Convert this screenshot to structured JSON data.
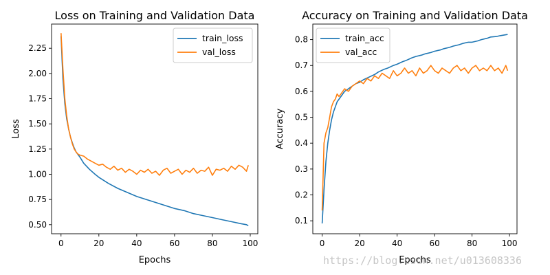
{
  "watermark": "https://blog.csdn.net/u013608336",
  "colors": {
    "train": "#1f77b4",
    "val": "#ff7f0e",
    "axis": "#000000",
    "legend_border": "#cccccc"
  },
  "chart_data": [
    {
      "type": "line",
      "title": "Loss on Training and Validation Data",
      "xlabel": "Epochs",
      "ylabel": "Loss",
      "xlim": [
        -5,
        104
      ],
      "ylim": [
        0.41,
        2.49
      ],
      "xticks": [
        0,
        20,
        40,
        60,
        80,
        100
      ],
      "yticks": [
        0.5,
        0.75,
        1.0,
        1.25,
        1.5,
        1.75,
        2.0,
        2.25
      ],
      "ytick_labels": [
        "0.50",
        "0.75",
        "1.00",
        "1.25",
        "1.50",
        "1.75",
        "2.00",
        "2.25"
      ],
      "legend_position": "top-right",
      "series": [
        {
          "name": "train_loss",
          "color": "#1f77b4",
          "x": [
            0,
            1,
            2,
            3,
            4,
            5,
            6,
            7,
            8,
            10,
            12,
            15,
            18,
            20,
            25,
            30,
            35,
            40,
            45,
            50,
            55,
            60,
            65,
            70,
            75,
            80,
            85,
            90,
            95,
            98,
            99
          ],
          "y": [
            2.37,
            1.95,
            1.7,
            1.55,
            1.45,
            1.37,
            1.31,
            1.26,
            1.22,
            1.17,
            1.11,
            1.05,
            1.0,
            0.97,
            0.91,
            0.86,
            0.82,
            0.78,
            0.75,
            0.72,
            0.69,
            0.66,
            0.64,
            0.61,
            0.59,
            0.57,
            0.55,
            0.53,
            0.51,
            0.5,
            0.49
          ]
        },
        {
          "name": "val_loss",
          "color": "#ff7f0e",
          "x": [
            0,
            1,
            2,
            3,
            4,
            5,
            6,
            7,
            8,
            9,
            10,
            12,
            14,
            16,
            18,
            20,
            22,
            24,
            26,
            28,
            30,
            32,
            34,
            36,
            38,
            40,
            42,
            44,
            46,
            48,
            50,
            52,
            54,
            56,
            58,
            60,
            62,
            64,
            66,
            68,
            70,
            72,
            74,
            76,
            78,
            80,
            82,
            84,
            86,
            88,
            90,
            92,
            94,
            96,
            98,
            99
          ],
          "y": [
            2.4,
            2.05,
            1.75,
            1.58,
            1.45,
            1.37,
            1.3,
            1.25,
            1.22,
            1.2,
            1.19,
            1.18,
            1.15,
            1.13,
            1.11,
            1.09,
            1.1,
            1.07,
            1.05,
            1.08,
            1.04,
            1.06,
            1.02,
            1.05,
            1.03,
            1.0,
            1.04,
            1.02,
            1.05,
            1.01,
            1.03,
            0.99,
            1.04,
            1.06,
            1.01,
            1.03,
            1.05,
            1.0,
            1.04,
            1.02,
            1.06,
            1.01,
            1.04,
            1.03,
            1.07,
            0.99,
            1.05,
            1.04,
            1.06,
            1.03,
            1.08,
            1.05,
            1.09,
            1.07,
            1.03,
            1.09
          ]
        }
      ]
    },
    {
      "type": "line",
      "title": "Accuracy  on Training and Validation Data",
      "xlabel": "Epochs",
      "ylabel": "Accuracy",
      "xlim": [
        -5,
        104
      ],
      "ylim": [
        0.05,
        0.86
      ],
      "xticks": [
        0,
        20,
        40,
        60,
        80,
        100
      ],
      "yticks": [
        0.1,
        0.2,
        0.3,
        0.4,
        0.5,
        0.6,
        0.7,
        0.8
      ],
      "ytick_labels": [
        "0.1",
        "0.2",
        "0.3",
        "0.4",
        "0.5",
        "0.6",
        "0.7",
        "0.8"
      ],
      "legend_position": "top-left",
      "series": [
        {
          "name": "train_acc",
          "color": "#1f77b4",
          "x": [
            0,
            1,
            2,
            3,
            4,
            5,
            6,
            7,
            8,
            10,
            12,
            14,
            16,
            18,
            20,
            22,
            25,
            28,
            30,
            33,
            35,
            38,
            40,
            43,
            45,
            48,
            50,
            53,
            55,
            58,
            60,
            63,
            65,
            68,
            70,
            73,
            75,
            78,
            80,
            83,
            85,
            88,
            90,
            93,
            95,
            99
          ],
          "y": [
            0.09,
            0.22,
            0.33,
            0.4,
            0.45,
            0.49,
            0.52,
            0.54,
            0.56,
            0.58,
            0.6,
            0.61,
            0.62,
            0.63,
            0.635,
            0.645,
            0.655,
            0.665,
            0.675,
            0.685,
            0.69,
            0.7,
            0.705,
            0.715,
            0.72,
            0.73,
            0.735,
            0.74,
            0.745,
            0.75,
            0.755,
            0.76,
            0.765,
            0.77,
            0.775,
            0.78,
            0.785,
            0.79,
            0.79,
            0.795,
            0.8,
            0.805,
            0.81,
            0.812,
            0.815,
            0.82
          ]
        },
        {
          "name": "val_acc",
          "color": "#ff7f0e",
          "x": [
            0,
            1,
            2,
            3,
            4,
            5,
            6,
            7,
            8,
            9,
            10,
            12,
            14,
            16,
            18,
            20,
            22,
            24,
            26,
            28,
            30,
            32,
            34,
            36,
            38,
            40,
            42,
            44,
            46,
            48,
            50,
            52,
            54,
            56,
            58,
            60,
            62,
            64,
            66,
            68,
            70,
            72,
            74,
            76,
            78,
            80,
            82,
            84,
            86,
            88,
            90,
            92,
            94,
            96,
            98,
            99
          ],
          "y": [
            0.14,
            0.4,
            0.44,
            0.46,
            0.5,
            0.54,
            0.56,
            0.57,
            0.59,
            0.58,
            0.59,
            0.61,
            0.6,
            0.62,
            0.63,
            0.64,
            0.63,
            0.65,
            0.64,
            0.66,
            0.65,
            0.67,
            0.66,
            0.65,
            0.68,
            0.66,
            0.67,
            0.69,
            0.67,
            0.68,
            0.66,
            0.69,
            0.67,
            0.68,
            0.7,
            0.68,
            0.67,
            0.69,
            0.68,
            0.67,
            0.69,
            0.7,
            0.68,
            0.69,
            0.67,
            0.69,
            0.7,
            0.68,
            0.69,
            0.68,
            0.7,
            0.68,
            0.69,
            0.67,
            0.7,
            0.68
          ]
        }
      ]
    }
  ]
}
